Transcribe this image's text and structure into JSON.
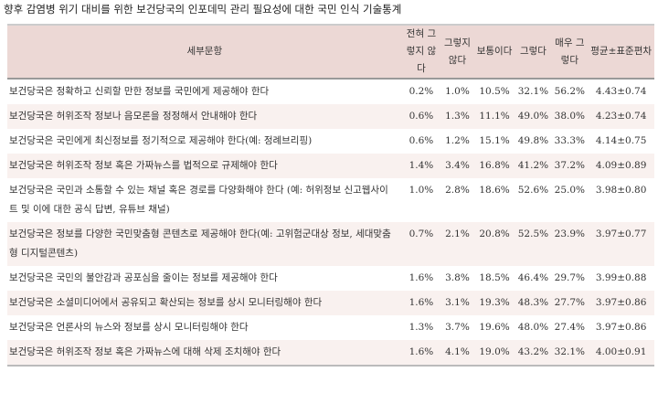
{
  "title": "향후 감염병 위기 대비를 위한 보건당국의 인포데믹 관리 필요성에 대한 국민 인식 기술통계",
  "headers": [
    "세부문항",
    "전혀 그렇지 않다",
    "그렇지 않다",
    "보통이다",
    "그렇다",
    "매우 그렇다",
    "평균±표준편차"
  ],
  "rows": [
    {
      "q": "보건당국은 정확하고 신뢰할 만한 정보를 국민에게 제공해야 한다",
      "v": [
        "0.2%",
        "1.0%",
        "10.5%",
        "32.1%",
        "56.2%",
        "4.43±0.74"
      ]
    },
    {
      "q": "보건당국은 허위조작 정보나 음모론을 정정해서 안내해야 한다",
      "v": [
        "0.6%",
        "1.3%",
        "11.1%",
        "49.0%",
        "38.0%",
        "4.23±0.74"
      ]
    },
    {
      "q": "보건당국은 국민에게 최신정보를 정기적으로 제공해야 한다(예: 정례브리핑)",
      "v": [
        "0.6%",
        "1.2%",
        "15.1%",
        "49.8%",
        "33.3%",
        "4.14±0.75"
      ]
    },
    {
      "q": "보건당국은 허위조작 정보 혹은 가짜뉴스를 법적으로 규제해야 한다",
      "v": [
        "1.4%",
        "3.4%",
        "16.8%",
        "41.2%",
        "37.2%",
        "4.09±0.89"
      ]
    },
    {
      "q": "보건당국은 국민과 소통할 수 있는 채널 혹은 경로를 다양화해야 한다 (예: 허위정보 신고웹사이트 및 이에 대한 공식 답변, 유튜브 채널)",
      "v": [
        "1.0%",
        "2.8%",
        "18.6%",
        "52.6%",
        "25.0%",
        "3.98±0.80"
      ]
    },
    {
      "q": "보건당국은 정보를 다양한 국민맞춤형 콘텐츠로 제공해야 한다(예: 고위험군대상 정보, 세대맞춤형 디지털콘텐츠)",
      "v": [
        "0.7%",
        "2.1%",
        "20.8%",
        "52.5%",
        "23.9%",
        "3.97±0.77"
      ]
    },
    {
      "q": "보건당국은 국민의 불안감과 공포심을 줄이는 정보를 제공해야 한다",
      "v": [
        "1.6%",
        "3.8%",
        "18.5%",
        "46.4%",
        "29.7%",
        "3.99±0.88"
      ]
    },
    {
      "q": "보건당국은 소셜미디어에서 공유되고 확산되는 정보를 상시 모니터링해야 한다",
      "v": [
        "1.6%",
        "3.1%",
        "19.3%",
        "48.3%",
        "27.7%",
        "3.97±0.86"
      ]
    },
    {
      "q": "보건당국은 언론사의 뉴스와 정보를 상시 모니터링해야 한다",
      "v": [
        "1.3%",
        "3.7%",
        "19.6%",
        "48.0%",
        "27.4%",
        "3.97±0.86"
      ]
    },
    {
      "q": "보건당국은 허위조작 정보 혹은 가짜뉴스에 대해 삭제 조치해야 한다",
      "v": [
        "1.6%",
        "4.1%",
        "19.0%",
        "43.2%",
        "32.1%",
        "4.00±0.91"
      ]
    }
  ]
}
